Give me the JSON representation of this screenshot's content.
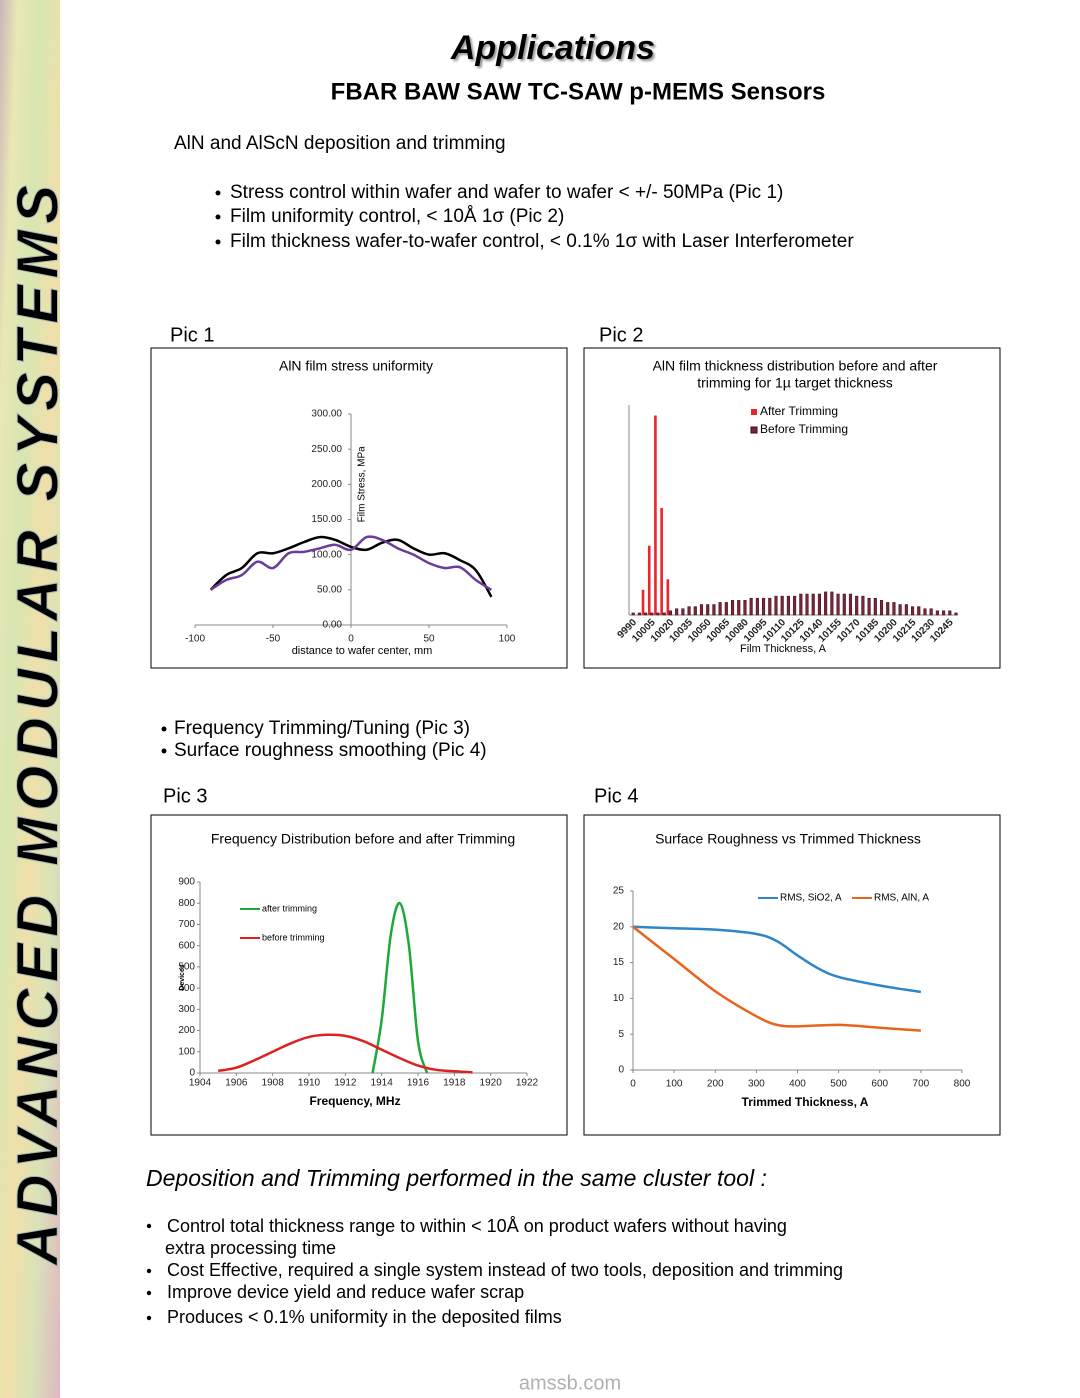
{
  "sidebar": "ADVANCED MODULAR SYSTEMS",
  "header": {
    "title": "Applications",
    "subtitle": "FBAR  BAW   SAW  TC-SAW  p-MEMS   Sensors"
  },
  "intro": "AlN and  AlScN deposition and trimming",
  "bullets": [
    "Stress control within wafer and wafer to wafer  <  +/- 50MPa (Pic 1)",
    "Film uniformity control, < 10Å  1σ (Pic 2)",
    "Film thickness wafer-to-wafer control, <  0.1% 1σ with Laser Interferometer"
  ],
  "pic_labels": [
    "Pic 1",
    "Pic 2",
    "Pic 3",
    "Pic 4"
  ],
  "bullets2": [
    "Frequency Trimming/Tuning  (Pic 3)",
    "Surface roughness smoothing  (Pic 4)"
  ],
  "heading": "Deposition and Trimming performed in the same cluster tool :",
  "bullets3": [
    [
      "Control total thickness range to within < 10Å on product wafers without having",
      "extra processing time"
    ],
    [
      "Cost Effective, required a single system instead of two tools, deposition and trimming"
    ],
    [
      "Improve device yield and reduce wafer scrap"
    ],
    [
      "Produces < 0.1% uniformity in the deposited films"
    ]
  ],
  "footer": "amssb.com",
  "chart_data": [
    {
      "type": "line",
      "title": [
        "AlN film stress uniformity"
      ],
      "xlabel": "distance to wafer center, mm",
      "ylabel": "Film Stress, MPa",
      "x": [
        -90,
        -80,
        -70,
        -60,
        -50,
        -40,
        -30,
        -20,
        -10,
        0,
        10,
        20,
        30,
        40,
        50,
        60,
        70,
        80,
        90
      ],
      "xlim": [
        -100,
        100
      ],
      "xticks": [
        -100,
        -50,
        0,
        50,
        100
      ],
      "ylim": [
        0,
        300
      ],
      "yticks": [
        {
          "value": 0,
          "label": "0.00"
        },
        {
          "value": 50,
          "label": "50.00"
        },
        {
          "value": 100,
          "label": "100.00"
        },
        {
          "value": 150,
          "label": "150.00"
        },
        {
          "value": 200,
          "label": "200.00"
        },
        {
          "value": 250,
          "label": "250.00"
        },
        {
          "value": 300,
          "label": "300.00"
        }
      ],
      "grid": false,
      "series": [
        {
          "color": "#000000",
          "values": [
            50,
            71,
            81,
            102,
            102,
            109,
            118,
            125,
            121,
            111,
            107,
            117,
            121,
            109,
            100,
            102,
            92,
            78,
            40
          ]
        },
        {
          "color": "#6a3d9a",
          "values": [
            50,
            64,
            71,
            90,
            81,
            102,
            104,
            109,
            114,
            107,
            125,
            121,
            109,
            100,
            88,
            81,
            82,
            64,
            50
          ]
        }
      ]
    },
    {
      "type": "bar",
      "title": [
        "AlN film thickness distribution before and after",
        "trimming for 1µ  target thickness"
      ],
      "xlabel": "Film Thickness, A",
      "categories": [
        9990,
        null,
        null,
        10005,
        null,
        null,
        10020,
        null,
        null,
        10035,
        null,
        null,
        10050,
        null,
        null,
        10065,
        null,
        null,
        10080,
        null,
        null,
        10095,
        null,
        null,
        10110,
        null,
        null,
        10125,
        null,
        null,
        10140,
        null,
        null,
        10155,
        null,
        null,
        10170,
        null,
        null,
        10185,
        null,
        null,
        10200,
        null,
        null,
        10215,
        null,
        null,
        10230,
        null,
        null,
        10245,
        null
      ],
      "ylim": [
        0,
        100
      ],
      "grid": false,
      "legend": "top",
      "series": [
        {
          "name": "After Trimming",
          "color": "#e8262b",
          "values": [
            0,
            0,
            12,
            33,
            95,
            51,
            17,
            0,
            0,
            0,
            0,
            0,
            0,
            0,
            0,
            0,
            0,
            0,
            0,
            0,
            0,
            0,
            0,
            0,
            0,
            0,
            0,
            0,
            0,
            0,
            0,
            0,
            0,
            0,
            0,
            0,
            0,
            0,
            0,
            0,
            0,
            0,
            0,
            0,
            0,
            0,
            0,
            0,
            0,
            0,
            0,
            0,
            0
          ]
        },
        {
          "name": "Before Trimming",
          "color": "#7a2638",
          "values": [
            1,
            1,
            1,
            1,
            1,
            1,
            2,
            3,
            3,
            4,
            4,
            5,
            5,
            5,
            6,
            6,
            7,
            7,
            7,
            8,
            8,
            8,
            8,
            9,
            9,
            9,
            9,
            10,
            10,
            10,
            10,
            11,
            11,
            10,
            10,
            10,
            9,
            9,
            8,
            8,
            7,
            6,
            6,
            5,
            5,
            4,
            4,
            3,
            3,
            2,
            2,
            2,
            1
          ]
        }
      ]
    },
    {
      "type": "line",
      "title": [
        "Frequency Distribution before and after Trimming"
      ],
      "xlabel": "Frequency, MHz",
      "ylabel": "Devices",
      "xlim": [
        1904,
        1922
      ],
      "xticks": [
        1904,
        1906,
        1908,
        1910,
        1912,
        1914,
        1916,
        1918,
        1920,
        1922
      ],
      "ylim": [
        0,
        900
      ],
      "yticks": [
        0,
        100,
        200,
        300,
        400,
        500,
        600,
        700,
        800,
        900
      ],
      "grid": false,
      "legend": "upper left",
      "series": [
        {
          "name": "after trimming",
          "color": "#1fa83a",
          "x": [
            1913.5,
            1914,
            1914.5,
            1915,
            1915.5,
            1916,
            1916.5
          ],
          "values": [
            0,
            250,
            650,
            800,
            600,
            150,
            0
          ]
        },
        {
          "name": "before trimming",
          "color": "#e0201f",
          "x": [
            1905,
            1906,
            1907,
            1908,
            1909,
            1910,
            1911,
            1912,
            1913,
            1914,
            1915,
            1916,
            1917,
            1918,
            1919
          ],
          "values": [
            10,
            25,
            60,
            100,
            140,
            170,
            180,
            175,
            150,
            110,
            70,
            35,
            15,
            8,
            3
          ]
        }
      ]
    },
    {
      "type": "line",
      "title": [
        "Surface Roughness vs Trimmed Thickness"
      ],
      "xlabel": "Trimmed Thickness, A",
      "xlim": [
        0,
        800
      ],
      "xticks": [
        0,
        100,
        200,
        300,
        400,
        500,
        600,
        700,
        800
      ],
      "ylim": [
        0,
        25
      ],
      "yticks": [
        0,
        5,
        10,
        15,
        20,
        25
      ],
      "grid": false,
      "legend": "top",
      "series": [
        {
          "name": "RMS, SiO2, A",
          "color": "#2e86c9",
          "x": [
            0,
            100,
            200,
            300,
            350,
            400,
            450,
            500,
            600,
            700
          ],
          "values": [
            20,
            19.8,
            19.6,
            19,
            18,
            16,
            14.2,
            13,
            11.8,
            10.9
          ]
        },
        {
          "name": "RMS, AlN, A",
          "color": "#e8641e",
          "x": [
            0,
            100,
            200,
            300,
            350,
            400,
            500,
            600,
            700
          ],
          "values": [
            20,
            15.5,
            11,
            7.5,
            6.3,
            6.1,
            6.3,
            5.9,
            5.5
          ]
        }
      ]
    }
  ]
}
